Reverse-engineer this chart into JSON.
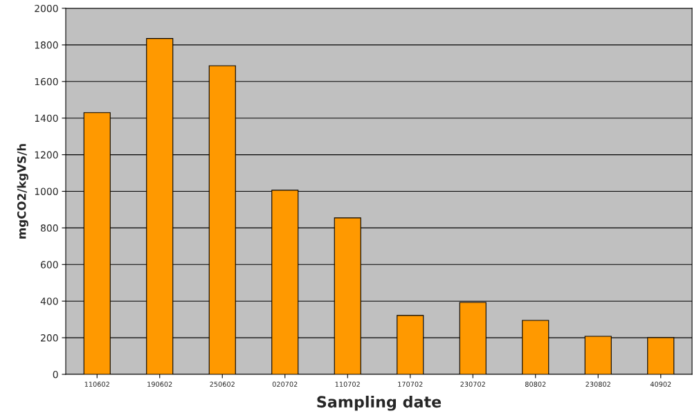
{
  "chart_data": {
    "type": "bar",
    "xlabel": "Sampling date",
    "ylabel": "mgCO2/kgVS/h",
    "categories": [
      "110602",
      "190602",
      "250602",
      "020702",
      "110702",
      "170702",
      "230702",
      "80802",
      "230802",
      "40902"
    ],
    "values": [
      1430,
      1835,
      1686,
      1006,
      855,
      322,
      393,
      295,
      208,
      201
    ],
    "color": "#ff9900",
    "ylim": [
      0,
      2000
    ],
    "yticks": [
      0,
      200,
      400,
      600,
      800,
      1000,
      1200,
      1400,
      1600,
      1800,
      2000
    ],
    "grid": "y"
  }
}
